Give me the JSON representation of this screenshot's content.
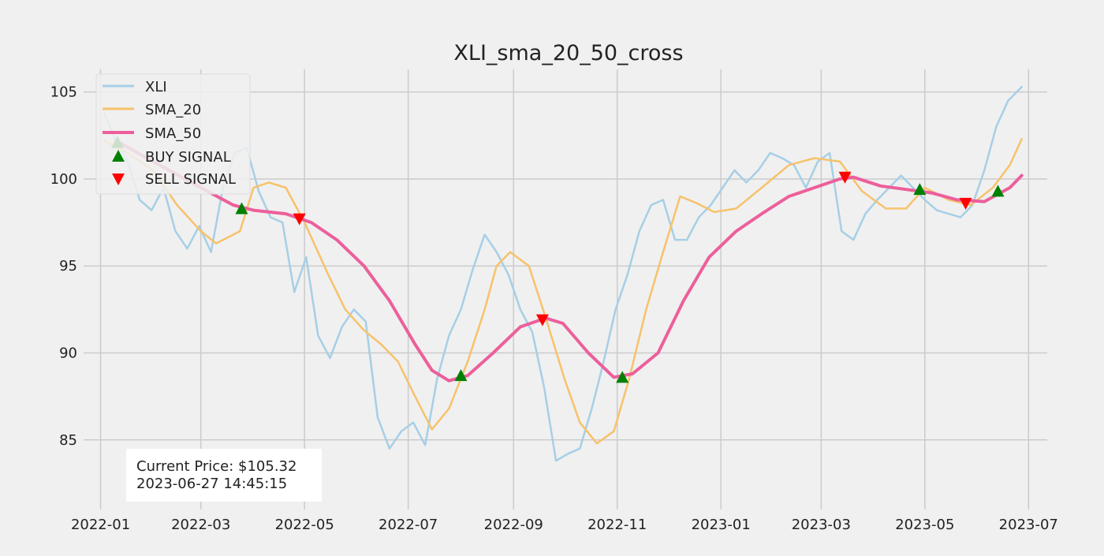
{
  "chart_data": {
    "type": "line",
    "title": "XLI_sma_20_50_cross",
    "xlabel": "",
    "ylabel": "",
    "x_range": [
      "2021-12-22",
      "2023-07-12"
    ],
    "ylim": [
      81.0,
      106.3
    ],
    "x_ticks": [
      "2022-01",
      "2022-03",
      "2022-05",
      "2022-07",
      "2022-09",
      "2022-11",
      "2023-01",
      "2023-03",
      "2023-05",
      "2023-07"
    ],
    "y_ticks": [
      85,
      90,
      95,
      100,
      105
    ],
    "grid": true,
    "legend_position": "upper-left",
    "colors": {
      "XLI": "#a6cfe6",
      "SMA_20": "#f7c26b",
      "SMA_50": "#ec5f9b",
      "BUY SIGNAL": "#008000",
      "SELL SIGNAL": "#ff0000"
    },
    "series": [
      {
        "name": "XLI",
        "points": [
          [
            "2022-01-03",
            103.8
          ],
          [
            "2022-01-10",
            102.2
          ],
          [
            "2022-01-17",
            101.0
          ],
          [
            "2022-01-24",
            98.8
          ],
          [
            "2022-01-31",
            98.2
          ],
          [
            "2022-02-07",
            99.5
          ],
          [
            "2022-02-14",
            97.0
          ],
          [
            "2022-02-21",
            96.0
          ],
          [
            "2022-02-28",
            97.3
          ],
          [
            "2022-03-07",
            95.8
          ],
          [
            "2022-03-14",
            99.5
          ],
          [
            "2022-03-21",
            101.5
          ],
          [
            "2022-03-28",
            101.8
          ],
          [
            "2022-04-04",
            99.3
          ],
          [
            "2022-04-11",
            97.8
          ],
          [
            "2022-04-18",
            97.5
          ],
          [
            "2022-04-25",
            93.5
          ],
          [
            "2022-05-02",
            95.5
          ],
          [
            "2022-05-09",
            91.0
          ],
          [
            "2022-05-16",
            89.7
          ],
          [
            "2022-05-23",
            91.5
          ],
          [
            "2022-05-30",
            92.5
          ],
          [
            "2022-06-06",
            91.8
          ],
          [
            "2022-06-13",
            86.3
          ],
          [
            "2022-06-20",
            84.5
          ],
          [
            "2022-06-27",
            85.5
          ],
          [
            "2022-07-04",
            86.0
          ],
          [
            "2022-07-11",
            84.7
          ],
          [
            "2022-07-18",
            88.5
          ],
          [
            "2022-07-25",
            91.0
          ],
          [
            "2022-08-01",
            92.5
          ],
          [
            "2022-08-08",
            94.8
          ],
          [
            "2022-08-15",
            96.8
          ],
          [
            "2022-08-22",
            95.8
          ],
          [
            "2022-08-29",
            94.5
          ],
          [
            "2022-09-05",
            92.5
          ],
          [
            "2022-09-12",
            91.2
          ],
          [
            "2022-09-19",
            88.0
          ],
          [
            "2022-09-26",
            83.8
          ],
          [
            "2022-10-03",
            84.2
          ],
          [
            "2022-10-10",
            84.5
          ],
          [
            "2022-10-17",
            86.8
          ],
          [
            "2022-10-24",
            89.5
          ],
          [
            "2022-10-31",
            92.5
          ],
          [
            "2022-11-07",
            94.5
          ],
          [
            "2022-11-14",
            97.0
          ],
          [
            "2022-11-21",
            98.5
          ],
          [
            "2022-11-28",
            98.8
          ],
          [
            "2022-12-05",
            96.5
          ],
          [
            "2022-12-12",
            96.5
          ],
          [
            "2022-12-19",
            97.8
          ],
          [
            "2022-12-26",
            98.5
          ],
          [
            "2023-01-02",
            99.5
          ],
          [
            "2023-01-09",
            100.5
          ],
          [
            "2023-01-16",
            99.8
          ],
          [
            "2023-01-23",
            100.5
          ],
          [
            "2023-01-30",
            101.5
          ],
          [
            "2023-02-06",
            101.2
          ],
          [
            "2023-02-13",
            100.8
          ],
          [
            "2023-02-20",
            99.5
          ],
          [
            "2023-02-27",
            101.0
          ],
          [
            "2023-03-06",
            101.5
          ],
          [
            "2023-03-13",
            97.0
          ],
          [
            "2023-03-20",
            96.5
          ],
          [
            "2023-03-27",
            98.0
          ],
          [
            "2023-04-03",
            98.8
          ],
          [
            "2023-04-10",
            99.5
          ],
          [
            "2023-04-17",
            100.2
          ],
          [
            "2023-04-24",
            99.5
          ],
          [
            "2023-05-01",
            98.8
          ],
          [
            "2023-05-08",
            98.2
          ],
          [
            "2023-05-15",
            98.0
          ],
          [
            "2023-05-22",
            97.8
          ],
          [
            "2023-05-29",
            98.5
          ],
          [
            "2023-06-05",
            100.5
          ],
          [
            "2023-06-12",
            103.0
          ],
          [
            "2023-06-19",
            104.5
          ],
          [
            "2023-06-27",
            105.3
          ]
        ]
      },
      {
        "name": "SMA_20",
        "points": [
          [
            "2022-01-03",
            102.2
          ],
          [
            "2022-01-17",
            101.5
          ],
          [
            "2022-02-01",
            100.5
          ],
          [
            "2022-02-15",
            98.5
          ],
          [
            "2022-03-01",
            97.0
          ],
          [
            "2022-03-10",
            96.3
          ],
          [
            "2022-03-24",
            97.0
          ],
          [
            "2022-04-01",
            99.5
          ],
          [
            "2022-04-10",
            99.8
          ],
          [
            "2022-04-20",
            99.5
          ],
          [
            "2022-05-01",
            97.5
          ],
          [
            "2022-05-15",
            94.5
          ],
          [
            "2022-05-25",
            92.5
          ],
          [
            "2022-06-05",
            91.3
          ],
          [
            "2022-06-15",
            90.5
          ],
          [
            "2022-06-25",
            89.5
          ],
          [
            "2022-07-05",
            87.5
          ],
          [
            "2022-07-15",
            85.6
          ],
          [
            "2022-07-25",
            86.8
          ],
          [
            "2022-08-05",
            89.5
          ],
          [
            "2022-08-15",
            92.5
          ],
          [
            "2022-08-22",
            95.0
          ],
          [
            "2022-08-30",
            95.8
          ],
          [
            "2022-09-10",
            95.0
          ],
          [
            "2022-09-20",
            92.0
          ],
          [
            "2022-10-01",
            88.5
          ],
          [
            "2022-10-10",
            86.0
          ],
          [
            "2022-10-20",
            84.8
          ],
          [
            "2022-10-30",
            85.5
          ],
          [
            "2022-11-08",
            88.5
          ],
          [
            "2022-11-18",
            92.5
          ],
          [
            "2022-11-28",
            95.8
          ],
          [
            "2022-12-08",
            99.0
          ],
          [
            "2022-12-18",
            98.6
          ],
          [
            "2022-12-28",
            98.1
          ],
          [
            "2023-01-10",
            98.3
          ],
          [
            "2023-01-25",
            99.5
          ],
          [
            "2023-02-10",
            100.8
          ],
          [
            "2023-02-25",
            101.2
          ],
          [
            "2023-03-12",
            101.0
          ],
          [
            "2023-03-25",
            99.3
          ],
          [
            "2023-04-08",
            98.3
          ],
          [
            "2023-04-20",
            98.3
          ],
          [
            "2023-05-01",
            99.5
          ],
          [
            "2023-05-15",
            98.8
          ],
          [
            "2023-05-28",
            98.5
          ],
          [
            "2023-06-10",
            99.5
          ],
          [
            "2023-06-20",
            100.8
          ],
          [
            "2023-06-27",
            102.3
          ]
        ]
      },
      {
        "name": "SMA_50",
        "points": [
          [
            "2022-01-10",
            102.2
          ],
          [
            "2022-02-01",
            101.0
          ],
          [
            "2022-03-01",
            99.5
          ],
          [
            "2022-03-20",
            98.5
          ],
          [
            "2022-04-01",
            98.2
          ],
          [
            "2022-04-20",
            98.0
          ],
          [
            "2022-05-05",
            97.5
          ],
          [
            "2022-05-20",
            96.5
          ],
          [
            "2022-06-05",
            95.0
          ],
          [
            "2022-06-20",
            93.0
          ],
          [
            "2022-07-05",
            90.5
          ],
          [
            "2022-07-15",
            89.0
          ],
          [
            "2022-07-25",
            88.4
          ],
          [
            "2022-08-05",
            88.7
          ],
          [
            "2022-08-20",
            90.0
          ],
          [
            "2022-09-05",
            91.5
          ],
          [
            "2022-09-20",
            92.0
          ],
          [
            "2022-09-30",
            91.7
          ],
          [
            "2022-10-15",
            90.0
          ],
          [
            "2022-10-30",
            88.6
          ],
          [
            "2022-11-10",
            88.8
          ],
          [
            "2022-11-25",
            90.0
          ],
          [
            "2022-12-10",
            93.0
          ],
          [
            "2022-12-25",
            95.5
          ],
          [
            "2023-01-10",
            97.0
          ],
          [
            "2023-01-25",
            98.0
          ],
          [
            "2023-02-10",
            99.0
          ],
          [
            "2023-02-25",
            99.5
          ],
          [
            "2023-03-12",
            100.0
          ],
          [
            "2023-03-20",
            100.1
          ],
          [
            "2023-04-05",
            99.6
          ],
          [
            "2023-04-20",
            99.4
          ],
          [
            "2023-05-05",
            99.2
          ],
          [
            "2023-05-20",
            98.8
          ],
          [
            "2023-06-05",
            98.7
          ],
          [
            "2023-06-20",
            99.5
          ],
          [
            "2023-06-27",
            100.2
          ]
        ]
      }
    ],
    "signals": [
      {
        "name": "BUY SIGNAL",
        "points": [
          [
            "2022-01-11",
            102.1
          ],
          [
            "2022-03-25",
            98.3
          ],
          [
            "2022-08-01",
            88.7
          ],
          [
            "2022-11-04",
            88.6
          ],
          [
            "2023-04-28",
            99.4
          ],
          [
            "2023-06-13",
            99.3
          ]
        ]
      },
      {
        "name": "SELL SIGNAL",
        "points": [
          [
            "2022-04-28",
            97.7
          ],
          [
            "2022-09-18",
            91.9
          ],
          [
            "2023-03-15",
            100.1
          ],
          [
            "2023-05-25",
            98.6
          ]
        ]
      }
    ]
  },
  "info_box": {
    "price": "Current Price: $105.32",
    "timestamp": "2023-06-27 14:45:15"
  }
}
